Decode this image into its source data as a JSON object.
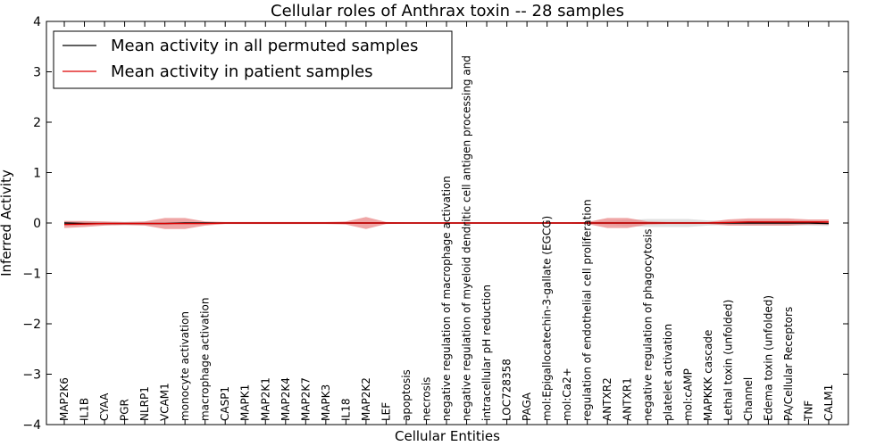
{
  "chart_data": {
    "type": "line",
    "title": "Cellular roles of Anthrax toxin -- 28 samples",
    "xlabel": "Cellular Entities",
    "ylabel": "Inferred Activity",
    "ylim": [
      -4,
      4
    ],
    "yticks": [
      "−4",
      "−3",
      "−2",
      "−1",
      "0",
      "1",
      "2",
      "3",
      "4"
    ],
    "grid": false,
    "legend_position": "top-left",
    "categories": [
      "MAP2K6",
      "IL1B",
      "CYAA",
      "PGR",
      "NLRP1",
      "VCAM1",
      "monocyte activation",
      "macrophage activation",
      "CASP1",
      "MAPK1",
      "MAP2K1",
      "MAP2K4",
      "MAP2K7",
      "MAPK3",
      "IL18",
      "MAP2K2",
      "LEF",
      "apoptosis",
      "necrosis",
      "negative regulation of macrophage activation",
      "negative regulation of myeloid dendritic cell antigen processing and",
      "intracellular pH reduction",
      "LOC728358",
      "PAGA",
      "mol:Epigallocatechin-3-gallate (EGCG)",
      "mol:Ca2+",
      "regulation of endothelial cell proliferation",
      "ANTXR2",
      "ANTXR1",
      "negative regulation of phagocytosis",
      "platelet activation",
      "mol:cAMP",
      "MAPKKK cascade",
      "Lethal toxin (unfolded)",
      "Channel",
      "Edema toxin (unfolded)",
      "PA/Cellular Receptors",
      "TNF",
      "CALM1"
    ],
    "series": [
      {
        "name": "Mean activity in all permuted samples",
        "color": "#000000",
        "band_color": "#bbbbbb",
        "values": [
          0,
          -0.01,
          -0.01,
          -0.01,
          -0.01,
          -0.01,
          0,
          0,
          0,
          0,
          0,
          0,
          0,
          0,
          0,
          0,
          0,
          0,
          0,
          0,
          0,
          0,
          0,
          0,
          0,
          0,
          0,
          0,
          0,
          0,
          0,
          0,
          0,
          0,
          0,
          0,
          0,
          0,
          -0.01
        ],
        "band": [
          0.04,
          0.04,
          0.03,
          0.03,
          0.03,
          0.03,
          0.02,
          0.02,
          0.01,
          0.01,
          0.01,
          0.01,
          0.01,
          0.01,
          0.01,
          0.02,
          0.01,
          0.01,
          0.01,
          0.01,
          0.01,
          0.01,
          0.01,
          0.01,
          0.01,
          0.01,
          0.02,
          0.04,
          0.06,
          0.08,
          0.08,
          0.08,
          0.05,
          0.04,
          0.05,
          0.05,
          0.05,
          0.05,
          0.05
        ]
      },
      {
        "name": "Mean activity in patient samples",
        "color": "#dd0000",
        "band_color": "#e88080",
        "values": [
          -0.03,
          -0.02,
          -0.01,
          -0.01,
          -0.01,
          -0.01,
          -0.01,
          -0.01,
          0,
          0,
          0,
          0,
          0,
          0,
          0,
          0,
          0,
          0,
          0,
          0,
          0,
          0,
          0,
          0,
          0,
          0,
          0,
          0,
          0,
          0,
          0,
          0,
          0,
          0.01,
          0.02,
          0.02,
          0.02,
          0.02,
          0.02
        ],
        "band": [
          0.07,
          0.06,
          0.04,
          0.03,
          0.04,
          0.11,
          0.11,
          0.04,
          0.02,
          0.02,
          0.02,
          0.02,
          0.02,
          0.02,
          0.03,
          0.12,
          0.02,
          0.01,
          0.01,
          0.01,
          0.01,
          0.01,
          0.01,
          0.01,
          0.01,
          0.01,
          0.02,
          0.1,
          0.1,
          0.03,
          0.02,
          0.02,
          0.02,
          0.06,
          0.07,
          0.07,
          0.07,
          0.05,
          0.05
        ]
      }
    ]
  }
}
